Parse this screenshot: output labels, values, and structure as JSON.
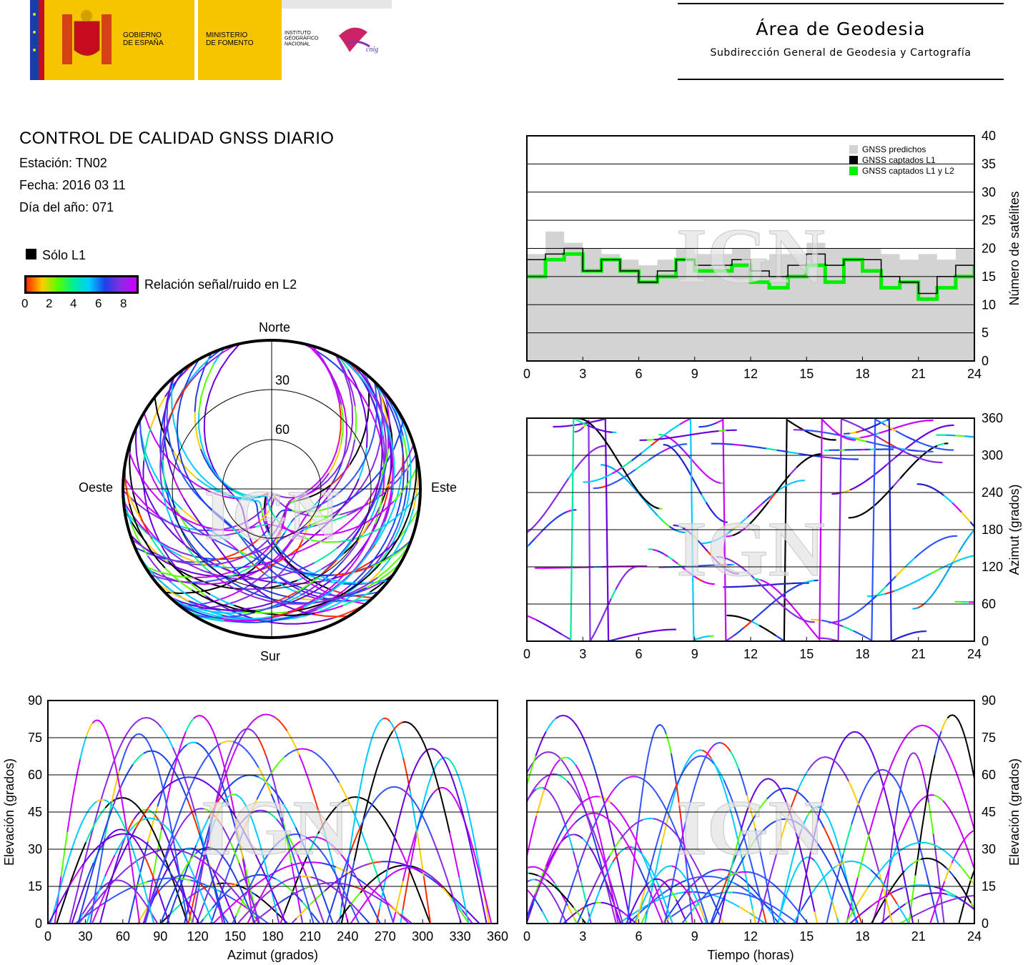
{
  "header": {
    "logo_text_gobierno": "GOBIERNO\nDE ESPAÑA",
    "logo_text_ministerio": "MINISTERIO\nDE FOMENTO",
    "logo_text_instituto": "INSTITUTO\nGEOGRÁFICO\nNACIONAL",
    "logo_text_cnig": "cnig",
    "area_title": "Área de Geodesia",
    "area_subtitle": "Subdirección General de Geodesia y Cartografía"
  },
  "report": {
    "title": "CONTROL DE CALIDAD GNSS DIARIO",
    "station": "Estación: TN02",
    "date": "Fecha: 2016 03 11",
    "doy": "Día del año: 071"
  },
  "legend": {
    "l1_only": "Sólo L1",
    "snr_label": "Relación señal/ruido en L2",
    "snr_ticks": [
      "0",
      "2",
      "4",
      "6",
      "8"
    ],
    "snr_colors": [
      "#ff2a00",
      "#ffcc00",
      "#55ff00",
      "#00ee99",
      "#00ccff",
      "#1e40e8",
      "#8a2be2",
      "#cc00ff"
    ]
  },
  "watermark": "IGN",
  "chart_data": [
    {
      "id": "satellite-count",
      "type": "area",
      "ylabel": "Número de satélites",
      "xlim": [
        0,
        24
      ],
      "ylim": [
        0,
        40
      ],
      "xticks": [
        0,
        3,
        6,
        9,
        12,
        15,
        18,
        21,
        24
      ],
      "yticks": [
        0,
        5,
        10,
        15,
        20,
        25,
        30,
        35,
        40
      ],
      "grid": true,
      "legend_position": "top-right",
      "series": [
        {
          "name": "GNSS predichos",
          "color": "#d3d3d3",
          "x": [
            0,
            1,
            2,
            3,
            4,
            5,
            6,
            7,
            8,
            9,
            10,
            11,
            12,
            13,
            14,
            15,
            16,
            17,
            18,
            19,
            20,
            21,
            22,
            23,
            24
          ],
          "values": [
            19,
            23,
            21,
            20,
            19,
            18,
            17,
            18,
            20,
            19,
            19,
            20,
            18,
            19,
            19,
            21,
            20,
            20,
            20,
            19,
            18,
            19,
            18,
            20,
            20
          ]
        },
        {
          "name": "GNSS captados L1",
          "color": "#000000",
          "x": [
            0,
            1,
            2,
            3,
            4,
            5,
            6,
            7,
            8,
            9,
            10,
            11,
            12,
            13,
            14,
            15,
            16,
            17,
            18,
            19,
            20,
            21,
            22,
            23,
            24
          ],
          "values": [
            18,
            19,
            20,
            16,
            18,
            16,
            14,
            16,
            18,
            17,
            17,
            18,
            16,
            15,
            17,
            19,
            17,
            18,
            18,
            15,
            14,
            12,
            15,
            17,
            18
          ]
        },
        {
          "name": "GNSS captados L1 y L2",
          "color": "#00ee00",
          "x": [
            0,
            1,
            2,
            3,
            4,
            5,
            6,
            7,
            8,
            9,
            10,
            11,
            12,
            13,
            14,
            15,
            16,
            17,
            18,
            19,
            20,
            21,
            22,
            23,
            24
          ],
          "values": [
            15,
            18,
            19,
            16,
            18,
            16,
            14,
            15,
            18,
            16,
            16,
            17,
            14,
            13,
            15,
            17,
            14,
            18,
            16,
            13,
            14,
            11,
            13,
            15,
            17
          ]
        }
      ]
    },
    {
      "id": "skyplot",
      "type": "scatter",
      "labels": {
        "north": "Norte",
        "south": "Sur",
        "east": "Este",
        "west": "Oeste"
      },
      "rings": [
        "30",
        "60"
      ],
      "color_scale": "SNR L2 (0-8)"
    },
    {
      "id": "azimuth-vs-time",
      "type": "scatter",
      "ylabel": "Azimut (grados)",
      "xlim": [
        0,
        24
      ],
      "ylim": [
        0,
        360
      ],
      "xticks": [
        0,
        3,
        6,
        9,
        12,
        15,
        18,
        21,
        24
      ],
      "yticks": [
        0,
        60,
        120,
        180,
        240,
        300,
        360
      ],
      "grid": true
    },
    {
      "id": "elevation-vs-azimuth",
      "type": "scatter",
      "xlabel": "Azimut (grados)",
      "ylabel": "Elevación (grados)",
      "xlim": [
        0,
        360
      ],
      "ylim": [
        0,
        90
      ],
      "xticks": [
        0,
        30,
        60,
        90,
        120,
        150,
        180,
        210,
        240,
        270,
        300,
        330,
        360
      ],
      "yticks": [
        0,
        15,
        30,
        45,
        60,
        75,
        90
      ],
      "grid": true
    },
    {
      "id": "elevation-vs-time",
      "type": "scatter",
      "xlabel": "Tiempo (horas)",
      "ylabel": "Elevación (grados)",
      "xlim": [
        0,
        24
      ],
      "ylim": [
        0,
        90
      ],
      "xticks": [
        0,
        3,
        6,
        9,
        12,
        15,
        18,
        21,
        24
      ],
      "yticks": [
        0,
        15,
        30,
        45,
        60,
        75,
        90
      ],
      "grid": true
    }
  ]
}
